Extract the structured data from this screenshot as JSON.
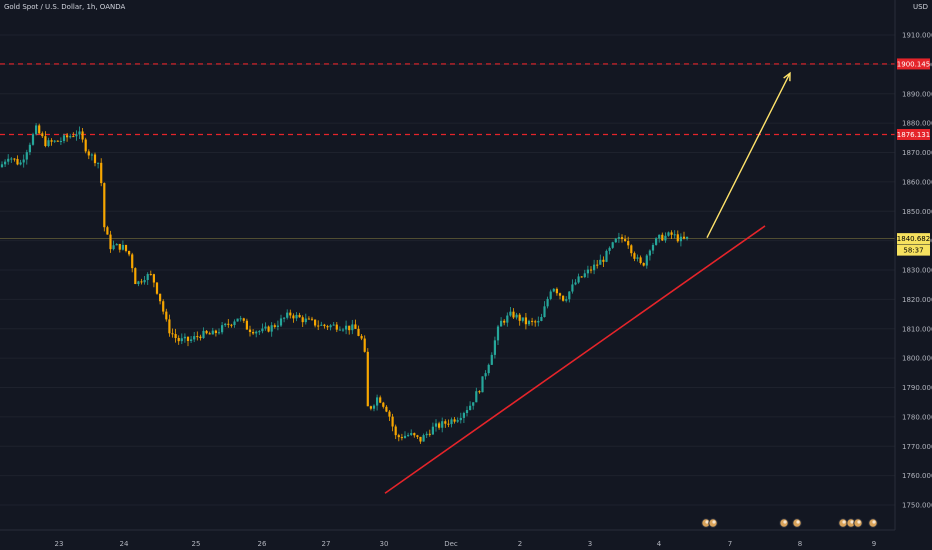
{
  "header": {
    "title": "Gold Spot / U.S. Dollar, 1h, OANDA",
    "unit": "USD"
  },
  "chart_data": {
    "type": "candlestick",
    "ylim": [
      1745,
      1915
    ],
    "y_ticks": [
      1750,
      1760,
      1770,
      1780,
      1790,
      1800,
      1810,
      1820,
      1830,
      1840,
      1850,
      1860,
      1870,
      1880,
      1890,
      1900,
      1910
    ],
    "x_ticks": [
      "23",
      "24",
      "25",
      "26",
      "27",
      "30",
      "Dec",
      "2",
      "3",
      "4",
      "7",
      "8",
      "9"
    ],
    "resistance_levels": [
      {
        "value": 1900.145,
        "label": "1900.145"
      },
      {
        "value": 1876.131,
        "label": "1876.131"
      }
    ],
    "current_price": {
      "value": 1840.682,
      "label": "1840.682",
      "countdown": "58:37"
    },
    "path": [
      [
        0,
        1865
      ],
      [
        8,
        1869
      ],
      [
        20,
        1866
      ],
      [
        36,
        1878
      ],
      [
        46,
        1873
      ],
      [
        60,
        1874
      ],
      [
        78,
        1877
      ],
      [
        88,
        1870
      ],
      [
        100,
        1866
      ],
      [
        104,
        1845
      ],
      [
        110,
        1838
      ],
      [
        122,
        1838
      ],
      [
        130,
        1835
      ],
      [
        136,
        1825
      ],
      [
        145,
        1828
      ],
      [
        152,
        1828
      ],
      [
        160,
        1820
      ],
      [
        168,
        1810
      ],
      [
        178,
        1806
      ],
      [
        190,
        1806
      ],
      [
        200,
        1808
      ],
      [
        212,
        1808
      ],
      [
        226,
        1811
      ],
      [
        238,
        1814
      ],
      [
        248,
        1810
      ],
      [
        262,
        1809
      ],
      [
        274,
        1811
      ],
      [
        290,
        1815
      ],
      [
        304,
        1813
      ],
      [
        322,
        1811
      ],
      [
        340,
        1811
      ],
      [
        355,
        1810
      ],
      [
        364,
        1805
      ],
      [
        368,
        1782
      ],
      [
        378,
        1787
      ],
      [
        388,
        1782
      ],
      [
        396,
        1773
      ],
      [
        410,
        1774
      ],
      [
        420,
        1772
      ],
      [
        432,
        1776
      ],
      [
        446,
        1778
      ],
      [
        458,
        1780
      ],
      [
        470,
        1784
      ],
      [
        480,
        1790
      ],
      [
        490,
        1800
      ],
      [
        500,
        1812
      ],
      [
        512,
        1815
      ],
      [
        526,
        1812
      ],
      [
        540,
        1812
      ],
      [
        552,
        1825
      ],
      [
        564,
        1820
      ],
      [
        576,
        1826
      ],
      [
        590,
        1830
      ],
      [
        604,
        1834
      ],
      [
        616,
        1840
      ],
      [
        626,
        1841
      ],
      [
        634,
        1835
      ],
      [
        642,
        1831
      ],
      [
        650,
        1838
      ],
      [
        660,
        1841
      ],
      [
        672,
        1842
      ],
      [
        682,
        1840
      ],
      [
        690,
        1841
      ]
    ],
    "trend_line": {
      "from": [
        385,
        1754
      ],
      "to": [
        765,
        1845
      ],
      "color": "#e5242a"
    },
    "arrow": {
      "from": [
        707,
        1841
      ],
      "to": [
        790,
        1897
      ],
      "color": "#ffe36b"
    }
  },
  "colors": {
    "background": "#131722",
    "bull": "#26a69a",
    "bear": "#f7a600",
    "resistance": "#e5242a",
    "price_line": "#f6e15f",
    "grid": "#1e222d"
  }
}
